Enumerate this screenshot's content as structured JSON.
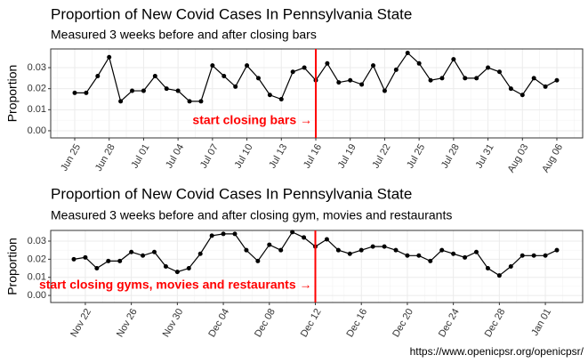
{
  "chart_data": [
    {
      "type": "line",
      "title": "Proportion of New Covid Cases In Pennsylvania State",
      "subtitle": "Measured 3 weeks before and after closing bars",
      "y_label": "Proportion",
      "categories": [
        "Jun 25",
        null,
        null,
        "Jun 28",
        null,
        null,
        "Jul 01",
        null,
        null,
        "Jul 04",
        null,
        null,
        "Jul 07",
        null,
        null,
        "Jul 10",
        null,
        null,
        "Jul 13",
        null,
        null,
        "Jul 16",
        null,
        null,
        "Jul 19",
        null,
        null,
        "Jul 22",
        null,
        null,
        "Jul 25",
        null,
        null,
        "Jul 28",
        null,
        null,
        "Jul 31",
        null,
        null,
        "Aug 03",
        null,
        null,
        "Aug 06"
      ],
      "series": [
        {
          "color": "#000000",
          "values": [
            0.018,
            0.018,
            0.026,
            0.035,
            0.014,
            0.019,
            0.019,
            0.026,
            0.02,
            0.019,
            0.014,
            0.014,
            0.031,
            0.026,
            0.021,
            0.031,
            0.025,
            0.017,
            0.015,
            0.028,
            0.03,
            0.024,
            0.032,
            0.023,
            0.024,
            0.022,
            0.031,
            0.019,
            0.029,
            0.037,
            0.032,
            0.024,
            0.025,
            0.034,
            0.025,
            0.025,
            0.03,
            0.028,
            0.02,
            0.017,
            0.025,
            0.021,
            0.024
          ]
        }
      ],
      "ylim": [
        -0.0034,
        0.0389
      ],
      "yticks": [
        {
          "value": 0,
          "label": "0.00"
        },
        {
          "value": 0.01,
          "label": "0.01"
        },
        {
          "value": 0.02,
          "label": "0.02"
        },
        {
          "value": 0.03,
          "label": "0.03"
        }
      ],
      "grid": true,
      "annotation": {
        "text": "start closing bars →",
        "at": "Jul 16",
        "color": "#ff0000"
      }
    },
    {
      "type": "line",
      "title": "Proportion of New Covid Cases In Pennsylvania State",
      "subtitle": "Measured 3 weeks before and after closing gym, movies and restaurants",
      "y_label": "Proportion",
      "categories": [
        null,
        "Nov 22",
        null,
        null,
        null,
        "Nov 26",
        null,
        null,
        null,
        "Nov 30",
        null,
        null,
        null,
        "Dec 04",
        null,
        null,
        null,
        "Dec 08",
        null,
        null,
        null,
        "Dec 12",
        null,
        null,
        null,
        "Dec 16",
        null,
        null,
        null,
        "Dec 20",
        null,
        null,
        null,
        "Dec 24",
        null,
        null,
        null,
        "Dec 28",
        null,
        null,
        null,
        "Jan 01",
        null
      ],
      "series": [
        {
          "color": "#000000",
          "values": [
            0.02,
            0.021,
            0.015,
            0.019,
            0.019,
            0.024,
            0.022,
            0.024,
            0.016,
            0.013,
            0.015,
            0.023,
            0.033,
            0.034,
            0.034,
            0.025,
            0.019,
            0.028,
            0.025,
            0.035,
            0.032,
            0.027,
            0.031,
            0.025,
            0.023,
            0.025,
            0.027,
            0.027,
            0.025,
            0.022,
            0.022,
            0.019,
            0.025,
            0.023,
            0.021,
            0.024,
            0.015,
            0.011,
            0.016,
            0.022,
            0.022,
            0.022,
            0.025
          ]
        }
      ],
      "ylim": [
        -0.0039,
        0.0359
      ],
      "yticks": [
        {
          "value": 0,
          "label": "0.00"
        },
        {
          "value": 0.01,
          "label": "0.01"
        },
        {
          "value": 0.02,
          "label": "0.02"
        },
        {
          "value": 0.03,
          "label": "0.03"
        }
      ],
      "grid": true,
      "annotation": {
        "text": "start closing gyms, movies and restaurants →",
        "at": "Dec 12",
        "color": "#ff0000"
      }
    }
  ],
  "source": "https://www.openicpsr.org/openicpsr/"
}
